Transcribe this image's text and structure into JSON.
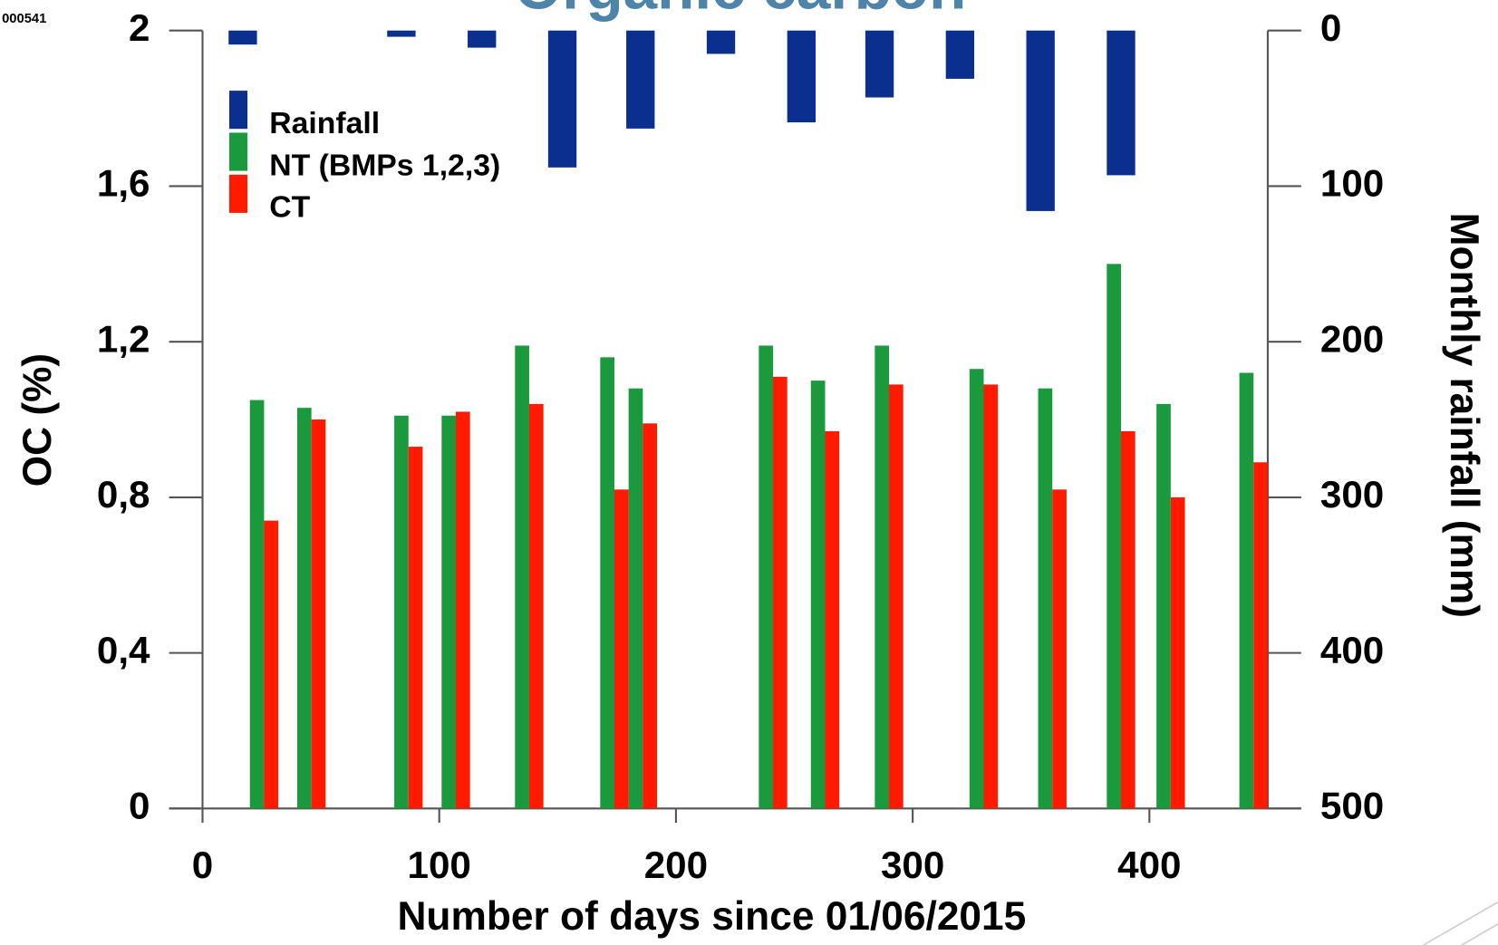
{
  "slide_id": "000541",
  "chart_data": {
    "type": "bar",
    "title": "Organic carbon",
    "x_label": "Number of days since 01/06/2015",
    "y_label": "OC (%)",
    "y2_label": "Monthly rainfall (mm)",
    "xlim": [
      0,
      450
    ],
    "xticks": [
      0,
      100,
      200,
      300,
      400
    ],
    "ylim": [
      0,
      2
    ],
    "yticks": [
      0,
      {
        "value": 0.4,
        "label": "0,4"
      },
      {
        "value": 0.8,
        "label": "0,8"
      },
      {
        "value": 1.2,
        "label": "1,2"
      },
      {
        "value": 1.6,
        "label": "1,6"
      },
      2
    ],
    "y2lim": [
      500,
      0
    ],
    "y2ticks": [
      0,
      100,
      200,
      300,
      400,
      500
    ],
    "series": [
      {
        "name": "Rainfall",
        "color": "#0b2f8e",
        "axis": "y2",
        "x": [
          17,
          84,
          118,
          152,
          185,
          219,
          253,
          286,
          320,
          354,
          388
        ],
        "values": [
          9,
          4,
          11,
          88,
          63,
          15,
          59,
          43,
          31,
          116,
          93
        ]
      },
      {
        "name": "NT (BMPs 1,2,3)",
        "color": "#1a9a3c",
        "x": [
          23,
          43,
          84,
          104,
          135,
          171,
          183,
          238,
          260,
          287,
          327,
          356,
          385,
          406,
          441
        ],
        "values": [
          1.05,
          1.03,
          1.01,
          1.01,
          1.19,
          1.16,
          1.08,
          1.19,
          1.1,
          1.19,
          1.13,
          1.08,
          1.4,
          1.04,
          1.12
        ]
      },
      {
        "name": "CT",
        "color": "#ff1a00",
        "x": [
          29,
          49,
          90,
          110,
          141,
          177,
          189,
          244,
          266,
          293,
          333,
          362,
          391,
          412,
          447
        ],
        "values": [
          0.74,
          1.0,
          0.93,
          1.02,
          1.04,
          0.82,
          0.99,
          1.11,
          0.97,
          1.09,
          1.09,
          0.82,
          0.97,
          0.8,
          0.89
        ]
      }
    ]
  }
}
